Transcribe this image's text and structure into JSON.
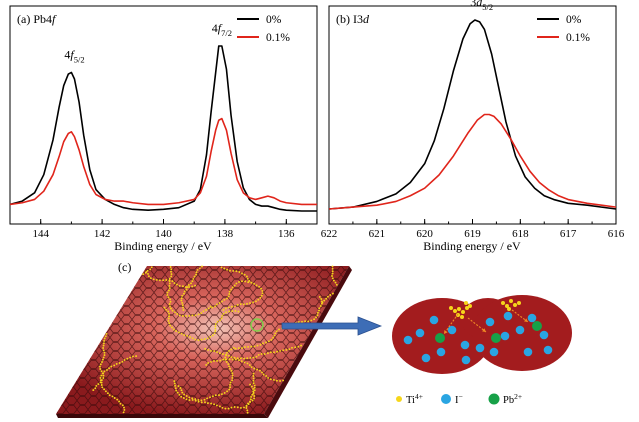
{
  "colors": {
    "series_0": "#000000",
    "series_1": "#e0251b",
    "crystal": "#b8201f",
    "ti": "#f6d61b",
    "iodide": "#2aa5e2",
    "lead": "#17a148",
    "arrow": "#3d6db6"
  },
  "panels": {
    "a": {
      "label_prefix": "(a) Pb4",
      "label_orbital": "f"
    },
    "b": {
      "label_prefix": "(b) I3",
      "label_orbital": "d"
    },
    "c": {
      "label": "(c)"
    }
  },
  "legend": {
    "label_0": "0%",
    "label_1": "0.1%"
  },
  "schematic_legend": {
    "ti": {
      "symbol": "Ti",
      "charge": "4+"
    },
    "iodide": {
      "symbol": "I",
      "charge": "−"
    },
    "lead": {
      "symbol": "Pb",
      "charge": "2+"
    }
  },
  "chart_data": [
    {
      "type": "line",
      "panel": "a",
      "xlabel": "Binding energy / eV",
      "ylabel": "",
      "xlim": [
        145,
        135
      ],
      "xticks": [
        144,
        142,
        140,
        138,
        136
      ],
      "y_ticks_shown": false,
      "annotations": [
        {
          "main": "4",
          "italic": "f",
          "sub": "5/2",
          "x": 143.0
        },
        {
          "main": "4",
          "italic": "f",
          "sub": "7/2",
          "x": 138.2
        }
      ],
      "series": [
        {
          "name": "0%",
          "color": "#000000",
          "x": [
            145.0,
            144.6,
            144.2,
            143.9,
            143.6,
            143.4,
            143.25,
            143.1,
            143.0,
            142.9,
            142.75,
            142.6,
            142.4,
            142.2,
            141.9,
            141.6,
            141.3,
            141.0,
            140.5,
            140.0,
            139.5,
            139.0,
            138.8,
            138.6,
            138.45,
            138.3,
            138.2,
            138.1,
            137.95,
            137.8,
            137.6,
            137.4,
            137.2,
            137.0,
            136.8,
            136.6,
            136.4,
            136.2,
            136.0,
            135.5,
            135.0
          ],
          "y": [
            0.04,
            0.06,
            0.11,
            0.22,
            0.43,
            0.63,
            0.76,
            0.83,
            0.84,
            0.8,
            0.66,
            0.46,
            0.25,
            0.13,
            0.07,
            0.04,
            0.02,
            0.01,
            0.005,
            0.01,
            0.02,
            0.06,
            0.13,
            0.34,
            0.6,
            0.84,
            1.0,
            1.0,
            0.86,
            0.58,
            0.3,
            0.14,
            0.07,
            0.04,
            0.03,
            0.03,
            0.02,
            0.01,
            0.005,
            0.0,
            0.0
          ]
        },
        {
          "name": "0.1%",
          "color": "#e0251b",
          "x": [
            145.0,
            144.6,
            144.2,
            143.9,
            143.6,
            143.4,
            143.25,
            143.1,
            143.0,
            142.9,
            142.75,
            142.6,
            142.4,
            142.2,
            141.9,
            141.6,
            141.3,
            141.0,
            140.5,
            140.0,
            139.5,
            139.0,
            138.8,
            138.6,
            138.45,
            138.3,
            138.2,
            138.1,
            137.95,
            137.8,
            137.6,
            137.4,
            137.2,
            137.0,
            136.8,
            136.6,
            136.4,
            136.2,
            136.0,
            135.5,
            135.0
          ],
          "y": [
            0.04,
            0.05,
            0.07,
            0.12,
            0.22,
            0.33,
            0.42,
            0.47,
            0.48,
            0.45,
            0.37,
            0.27,
            0.16,
            0.1,
            0.07,
            0.06,
            0.06,
            0.05,
            0.04,
            0.04,
            0.05,
            0.07,
            0.11,
            0.21,
            0.36,
            0.49,
            0.55,
            0.56,
            0.49,
            0.35,
            0.19,
            0.11,
            0.08,
            0.07,
            0.08,
            0.09,
            0.08,
            0.06,
            0.05,
            0.04,
            0.04
          ]
        }
      ]
    },
    {
      "type": "line",
      "panel": "b",
      "xlabel": "Binding energy / eV",
      "ylabel": "",
      "xlim": [
        622,
        616
      ],
      "xticks": [
        622,
        621,
        620,
        619,
        618,
        617,
        616
      ],
      "y_ticks_shown": false,
      "annotations": [
        {
          "main": "3",
          "italic": "d",
          "sub": "5/2",
          "x": 618.9
        }
      ],
      "series": [
        {
          "name": "0%",
          "color": "#000000",
          "x": [
            622.0,
            621.5,
            621.0,
            620.6,
            620.3,
            620.0,
            619.8,
            619.6,
            619.4,
            619.2,
            619.05,
            618.95,
            618.85,
            618.75,
            618.6,
            618.45,
            618.3,
            618.1,
            617.9,
            617.7,
            617.5,
            617.3,
            617.0,
            616.6,
            616.3,
            616.0
          ],
          "y": [
            0.0,
            0.01,
            0.04,
            0.08,
            0.14,
            0.24,
            0.36,
            0.53,
            0.73,
            0.9,
            0.98,
            1.0,
            0.99,
            0.95,
            0.82,
            0.64,
            0.46,
            0.28,
            0.17,
            0.11,
            0.07,
            0.05,
            0.03,
            0.02,
            0.01,
            0.0
          ]
        },
        {
          "name": "0.1%",
          "color": "#e0251b",
          "x": [
            622.0,
            621.5,
            621.0,
            620.6,
            620.3,
            620.0,
            619.7,
            619.4,
            619.1,
            618.9,
            618.75,
            618.65,
            618.55,
            618.4,
            618.2,
            618.0,
            617.8,
            617.6,
            617.4,
            617.2,
            617.0,
            616.6,
            616.3,
            616.0
          ],
          "y": [
            0.0,
            0.01,
            0.02,
            0.04,
            0.07,
            0.11,
            0.18,
            0.28,
            0.4,
            0.47,
            0.5,
            0.5,
            0.49,
            0.45,
            0.37,
            0.28,
            0.2,
            0.14,
            0.1,
            0.07,
            0.05,
            0.03,
            0.02,
            0.01
          ]
        }
      ]
    }
  ]
}
